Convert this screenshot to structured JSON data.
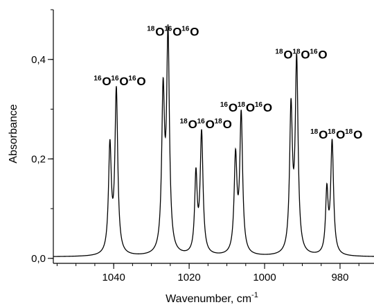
{
  "chart_data": {
    "type": "line",
    "xlabel": "Wavenumber, cm",
    "xlabel_superscript": "-1",
    "ylabel": "Absorbance",
    "xlim": [
      1056,
      971
    ],
    "ylim": [
      -0.01,
      0.5
    ],
    "x_reversed": true,
    "x_ticks": [
      1040,
      1020,
      1000,
      980
    ],
    "x_tick_labels": [
      "1040",
      "1020",
      "1000",
      "980"
    ],
    "x_minor_step": 5,
    "y_ticks": [
      0.0,
      0.2,
      0.4
    ],
    "y_tick_labels": [
      "0,0",
      "0,2",
      "0,4"
    ],
    "y_minor_step": 0.1,
    "grid": false,
    "baseline": 0.003,
    "peaks": [
      {
        "x": 1041.0,
        "height": 0.214,
        "width": 0.45
      },
      {
        "x": 1039.3,
        "height": 0.328,
        "width": 0.45
      },
      {
        "x": 1026.9,
        "height": 0.312,
        "width": 0.45
      },
      {
        "x": 1025.6,
        "height": 0.432,
        "width": 0.45
      },
      {
        "x": 1018.2,
        "height": 0.156,
        "width": 0.4
      },
      {
        "x": 1016.7,
        "height": 0.243,
        "width": 0.45
      },
      {
        "x": 1007.7,
        "height": 0.192,
        "width": 0.45
      },
      {
        "x": 1006.2,
        "height": 0.278,
        "width": 0.45
      },
      {
        "x": 993.0,
        "height": 0.286,
        "width": 0.45
      },
      {
        "x": 991.5,
        "height": 0.384,
        "width": 0.45
      },
      {
        "x": 983.5,
        "height": 0.124,
        "width": 0.4
      },
      {
        "x": 982.1,
        "height": 0.226,
        "width": 0.45
      }
    ],
    "annotations": [
      {
        "isotopes": [
          "16",
          "16",
          "16"
        ],
        "letter": "O",
        "x": 1038.3,
        "y": 0.348
      },
      {
        "isotopes": [
          "18",
          "16",
          "16"
        ],
        "letter": "O",
        "x": 1024.2,
        "y": 0.448
      },
      {
        "isotopes": [
          "18",
          "16",
          "18"
        ],
        "letter": "O",
        "x": 1015.5,
        "y": 0.262
      },
      {
        "isotopes": [
          "16",
          "18",
          "16"
        ],
        "letter": "O",
        "x": 1004.8,
        "y": 0.295
      },
      {
        "isotopes": [
          "18",
          "18",
          "16"
        ],
        "letter": "O",
        "x": 990.2,
        "y": 0.402
      },
      {
        "isotopes": [
          "18",
          "18",
          "18"
        ],
        "letter": "O",
        "x": 980.9,
        "y": 0.241
      }
    ]
  }
}
